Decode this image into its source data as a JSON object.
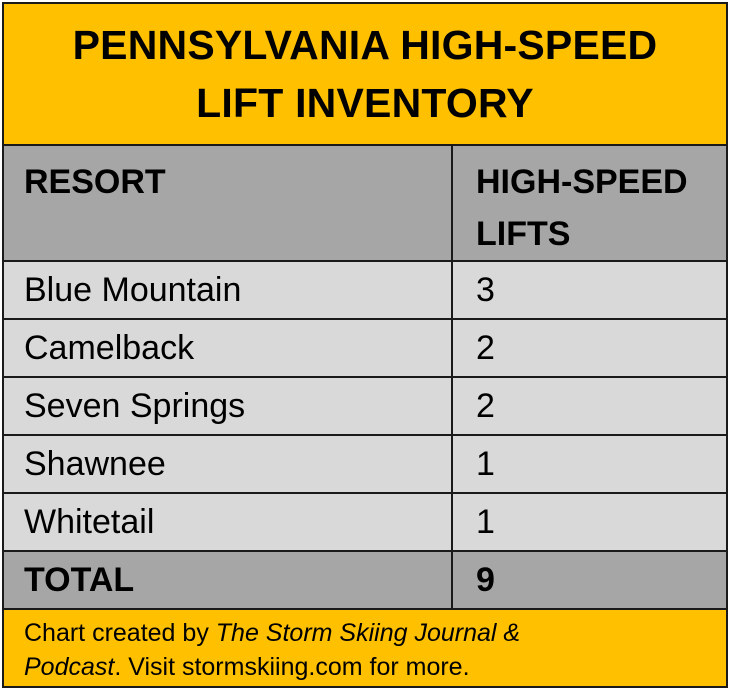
{
  "title": {
    "line1": "PENNSYLVANIA HIGH-SPEED",
    "line2": "LIFT INVENTORY"
  },
  "header": {
    "resort": "RESORT",
    "lifts_line1": "HIGH-SPEED",
    "lifts_line2": "LIFTS"
  },
  "rows": [
    {
      "resort": "Blue Mountain",
      "lifts": "3"
    },
    {
      "resort": "Camelback",
      "lifts": "2"
    },
    {
      "resort": "Seven Springs",
      "lifts": "2"
    },
    {
      "resort": "Shawnee",
      "lifts": "1"
    },
    {
      "resort": "Whitetail",
      "lifts": "1"
    }
  ],
  "total": {
    "label": "TOTAL",
    "value": "9"
  },
  "footer": {
    "prefix": "Chart created by ",
    "publication": "The Storm Skiing Journal &",
    "publication_cont": "Podcast",
    "suffix": ". Visit stormskiing.com for more."
  },
  "colors": {
    "title_band": "#ffc000",
    "header_band": "#a6a6a6",
    "row_fill": "#d9d9d9",
    "border": "#1a1a1a"
  }
}
